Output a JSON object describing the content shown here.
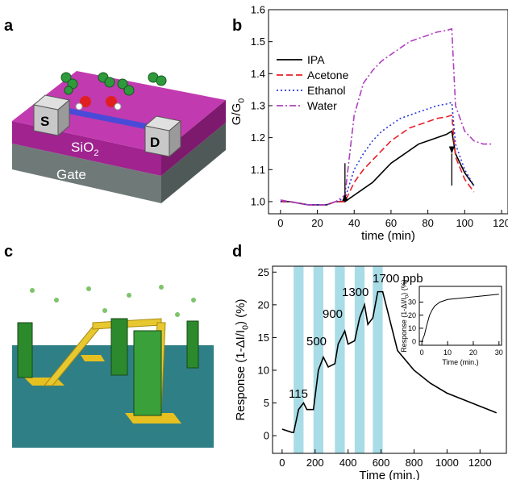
{
  "panel_labels": [
    "a",
    "b",
    "c",
    "d"
  ],
  "illustration_a": {
    "source": "S",
    "drain": "D",
    "oxide": [
      "SiO",
      "2"
    ],
    "gate": "Gate"
  },
  "chart_data": [
    {
      "type": "line",
      "xlabel": "time (min)",
      "ylabel": [
        "G/G",
        "0"
      ],
      "xlim": [
        -6.5,
        123.5
      ],
      "ylim": [
        0.962,
        1.6
      ],
      "xticks": [
        0,
        20,
        40,
        60,
        80,
        100,
        120
      ],
      "yticks": [
        {
          "value": 1.0,
          "label": "1.0"
        },
        1.1,
        1.2,
        1.3,
        1.4,
        1.5,
        {
          "value": 1.6,
          "label": "1.6"
        }
      ],
      "legend": "upper left",
      "arrow_x": [
        35,
        93
      ],
      "x": [
        0,
        5,
        10,
        15,
        20,
        25,
        30,
        35,
        40,
        45,
        50,
        55,
        60,
        65,
        70,
        75,
        80,
        85,
        90,
        93,
        95,
        100,
        105,
        110,
        115
      ],
      "series": [
        {
          "name": "IPA",
          "color": "#000000",
          "style": "solid",
          "values": [
            1.0,
            1.0,
            0.995,
            0.99,
            0.99,
            0.99,
            1.0,
            1.0,
            1.02,
            1.04,
            1.06,
            1.09,
            1.12,
            1.14,
            1.16,
            1.18,
            1.19,
            1.2,
            1.21,
            1.22,
            1.15,
            1.09,
            1.05,
            null,
            null
          ]
        },
        {
          "name": "Acetone",
          "color": "#e8202a",
          "style": "dashed",
          "values": [
            1.0,
            1.0,
            0.995,
            0.99,
            0.99,
            0.99,
            1.0,
            1.0,
            1.06,
            1.1,
            1.13,
            1.16,
            1.19,
            1.21,
            1.23,
            1.24,
            1.25,
            1.26,
            1.265,
            1.27,
            1.14,
            1.07,
            1.03,
            null,
            null
          ]
        },
        {
          "name": "Ethanol",
          "color": "#2838d8",
          "style": "dotted",
          "values": [
            1.0,
            1.0,
            0.995,
            0.99,
            0.99,
            0.99,
            1.0,
            1.01,
            1.1,
            1.15,
            1.19,
            1.22,
            1.24,
            1.26,
            1.27,
            1.28,
            1.29,
            1.3,
            1.305,
            1.31,
            1.18,
            1.1,
            1.05,
            null,
            null
          ]
        },
        {
          "name": "Water",
          "color": "#b040c0",
          "style": "dashdot",
          "values": [
            1.005,
            1.0,
            0.995,
            0.99,
            0.99,
            0.99,
            1.0,
            1.02,
            1.27,
            1.37,
            1.41,
            1.44,
            1.46,
            1.48,
            1.5,
            1.51,
            1.52,
            1.53,
            1.535,
            1.54,
            1.3,
            1.22,
            1.19,
            1.18,
            1.18
          ]
        }
      ]
    },
    {
      "type": "line",
      "xlabel": "Time (min.)",
      "ylabel": [
        "Response (1-ΔI/I",
        "0",
        ") (%)"
      ],
      "xlim": [
        -58,
        1360
      ],
      "ylim": [
        -2.7,
        25.9
      ],
      "xticks": [
        0,
        200,
        400,
        600,
        800,
        1000,
        1200
      ],
      "yticks": [
        0,
        5,
        10,
        15,
        20,
        25
      ],
      "highlight_intervals": [
        [
          70,
          130
        ],
        [
          190,
          250
        ],
        [
          320,
          380
        ],
        [
          440,
          500
        ],
        [
          550,
          610
        ]
      ],
      "highlight_color": "#a8dce6",
      "annotations": [
        "115",
        "500",
        "900",
        "1300",
        "1700 ppb"
      ],
      "x": [
        0,
        60,
        70,
        100,
        130,
        150,
        190,
        220,
        250,
        280,
        320,
        340,
        380,
        400,
        440,
        470,
        500,
        520,
        550,
        580,
        610,
        700,
        800,
        900,
        1000,
        1100,
        1200,
        1300
      ],
      "series": [
        {
          "color": "#000000",
          "style": "solid",
          "values": [
            1,
            0.5,
            0.5,
            4,
            5,
            4,
            4,
            10,
            12,
            10.5,
            11,
            14,
            16,
            14,
            14.5,
            18,
            20,
            17,
            18,
            22,
            22,
            13,
            10,
            8,
            6.5,
            5.5,
            4.5,
            3.5
          ]
        }
      ]
    },
    {
      "type": "line",
      "xlabel": "Time (min.)",
      "ylabel": [
        "Response (1-ΔI/I",
        "0",
        ") (%)"
      ],
      "xlim": [
        -1,
        31
      ],
      "ylim": [
        -3,
        42
      ],
      "xticks": [
        0,
        10,
        20,
        30
      ],
      "yticks": [
        0,
        10,
        20,
        30
      ],
      "x": [
        0,
        1,
        2,
        3,
        4,
        5,
        7,
        10,
        15,
        20,
        25,
        30
      ],
      "series": [
        {
          "color": "#000000",
          "style": "solid",
          "values": [
            0,
            5,
            13,
            20,
            24,
            27,
            30,
            32,
            33,
            34,
            35,
            36
          ]
        }
      ]
    }
  ]
}
